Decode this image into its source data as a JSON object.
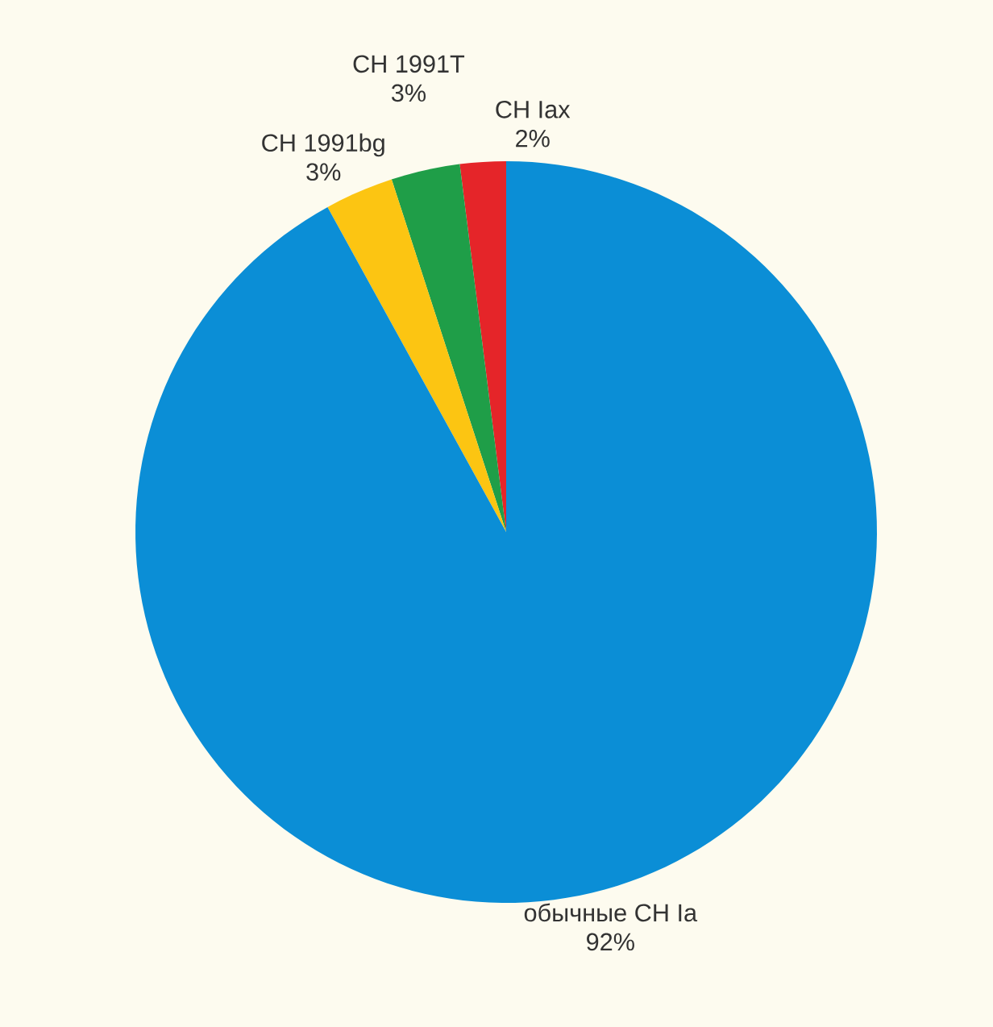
{
  "chart_data": {
    "type": "pie",
    "categories": [
      "СН Iax",
      "СН 1991T",
      "СН 1991bg",
      "обычные СН Ia"
    ],
    "values": [
      2,
      3,
      3,
      92
    ],
    "value_labels": [
      "2%",
      "3%",
      "3%",
      "92%"
    ],
    "colors": [
      "#e52529",
      "#1f9e48",
      "#fcc512",
      "#0b8ed6"
    ]
  }
}
